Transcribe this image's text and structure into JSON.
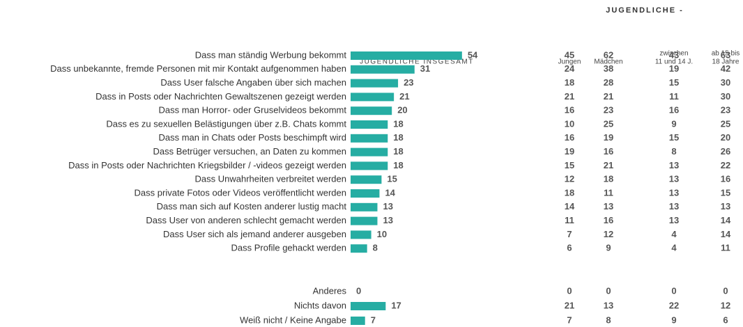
{
  "chart_data": {
    "type": "bar",
    "orientation": "horizontal",
    "subtitle": "JUGENDLICHE INSGESAMT",
    "color": "#26ada3",
    "categories": [
      "Dass man ständig Werbung bekommt",
      "Dass unbekannte, fremde Personen mit mir Kontakt aufgenommen haben",
      "Dass User falsche Angaben über sich machen",
      "Dass in Posts oder Nachrichten Gewaltszenen gezeigt werden",
      "Dass man Horror- oder Gruselvideos bekommt",
      "Dass es zu sexuellen Belästigungen über z.B. Chats kommt",
      "Dass man in Chats oder Posts beschimpft wird",
      "Dass Betrüger versuchen, an Daten zu kommen",
      "Dass in Posts oder Nachrichten Kriegsbilder / -videos gezeigt werden",
      "Dass Unwahrheiten verbreitet werden",
      "Dass private Fotos oder Videos veröffentlicht werden",
      "Dass man sich auf Kosten anderer lustig macht",
      "Dass User von anderen schlecht gemacht werden",
      "Dass User sich als jemand anderer ausgeben",
      "Dass Profile gehackt werden",
      "Anderes",
      "Nichts davon",
      "Weiß nicht / Keine Angabe"
    ],
    "values": [
      54,
      31,
      23,
      21,
      20,
      18,
      18,
      18,
      18,
      15,
      14,
      13,
      13,
      10,
      8,
      0,
      17,
      7
    ]
  },
  "table": {
    "group_title": "JUGENDLICHE -",
    "columns": [
      {
        "label": [
          "Jungen"
        ],
        "values": [
          45,
          24,
          18,
          21,
          16,
          10,
          16,
          19,
          15,
          12,
          18,
          14,
          11,
          7,
          6,
          0,
          21,
          7
        ]
      },
      {
        "label": [
          "Mädchen"
        ],
        "values": [
          62,
          38,
          28,
          21,
          23,
          25,
          19,
          16,
          21,
          18,
          11,
          13,
          16,
          12,
          9,
          0,
          13,
          8
        ]
      },
      {
        "label": [
          "zwischen",
          "11 und 14 J."
        ],
        "values": [
          43,
          19,
          15,
          11,
          16,
          9,
          15,
          8,
          13,
          13,
          13,
          13,
          13,
          4,
          4,
          0,
          22,
          9
        ]
      },
      {
        "label": [
          "ab 15 bis",
          "18 Jahre"
        ],
        "values": [
          63,
          42,
          30,
          30,
          23,
          25,
          20,
          26,
          22,
          16,
          15,
          13,
          14,
          14,
          11,
          0,
          12,
          6
        ]
      }
    ]
  }
}
